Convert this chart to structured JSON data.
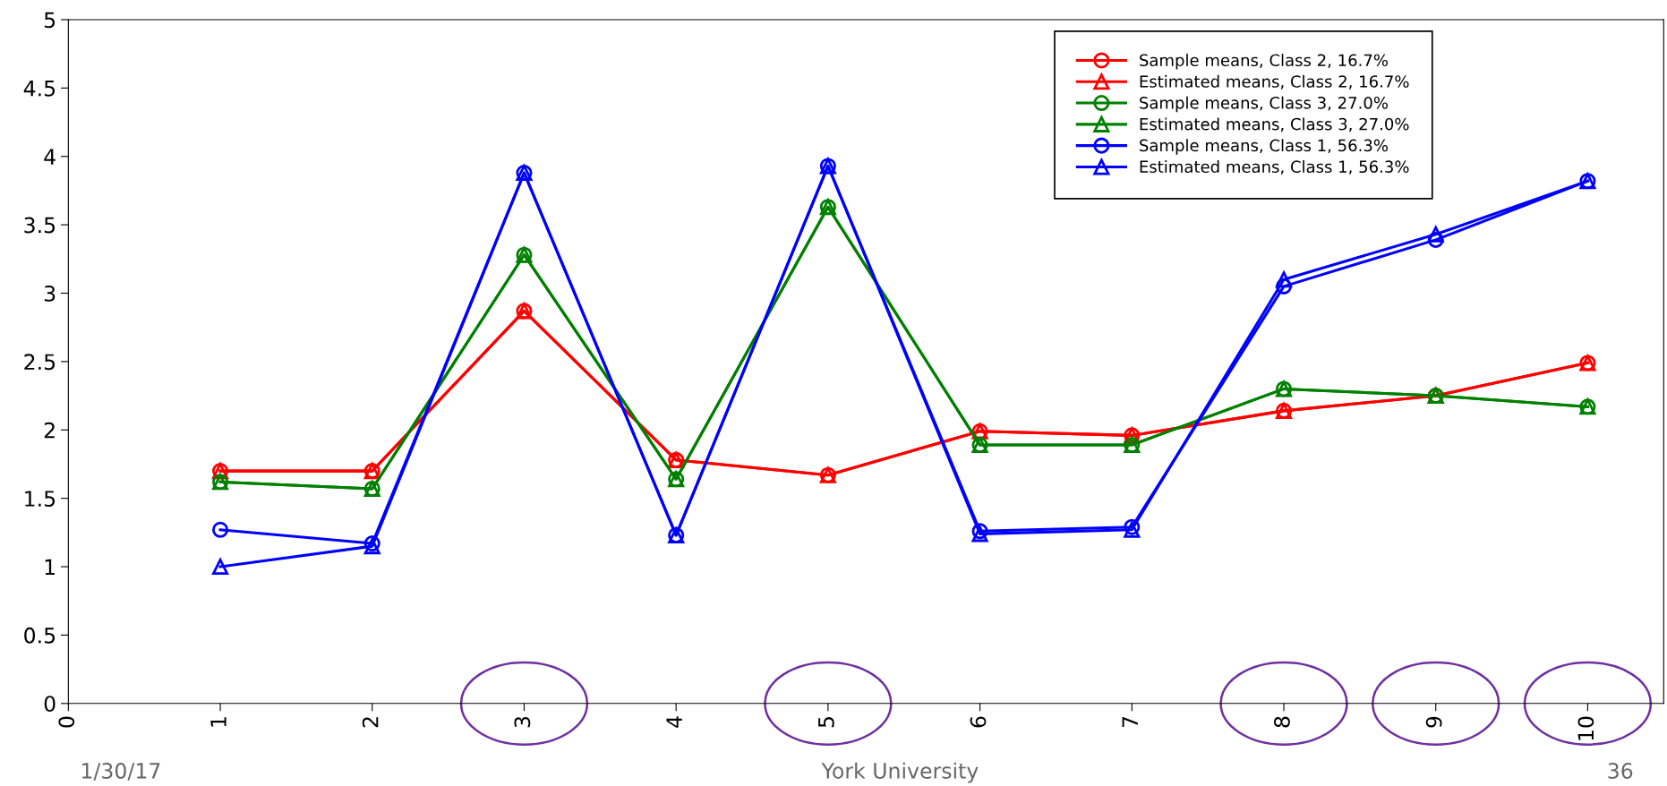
{
  "chart_data": {
    "type": "line",
    "x": [
      1,
      2,
      3,
      4,
      5,
      6,
      7,
      8,
      9,
      10
    ],
    "series": [
      {
        "name": "Sample means, Class 2, 16.7%",
        "color": "#ff0000",
        "marker": "circle",
        "values": [
          1.7,
          1.7,
          2.87,
          1.78,
          1.67,
          1.99,
          1.96,
          2.14,
          2.25,
          2.49
        ]
      },
      {
        "name": "Estimated means, Class 2, 16.7%",
        "color": "#ff0000",
        "marker": "triangle",
        "values": [
          1.7,
          1.7,
          2.87,
          1.78,
          1.67,
          1.99,
          1.96,
          2.14,
          2.25,
          2.49
        ]
      },
      {
        "name": "Sample means, Class 3, 27.0%",
        "color": "#008000",
        "marker": "circle",
        "values": [
          1.62,
          1.57,
          3.28,
          1.64,
          3.63,
          1.89,
          1.89,
          2.3,
          2.25,
          2.17
        ]
      },
      {
        "name": "Estimated means, Class 3, 27.0%",
        "color": "#008000",
        "marker": "triangle",
        "values": [
          1.62,
          1.57,
          3.28,
          1.64,
          3.63,
          1.89,
          1.89,
          2.3,
          2.25,
          2.17
        ]
      },
      {
        "name": "Sample means, Class 1, 56.3%",
        "color": "#0000ff",
        "marker": "circle",
        "values": [
          1.27,
          1.17,
          3.88,
          1.23,
          3.93,
          1.26,
          1.29,
          3.05,
          3.39,
          3.82
        ]
      },
      {
        "name": "Estimated means, Class 1, 56.3%",
        "color": "#0000ff",
        "marker": "triangle",
        "values": [
          1.0,
          1.15,
          3.88,
          1.23,
          3.93,
          1.24,
          1.27,
          3.1,
          3.43,
          3.82
        ]
      }
    ],
    "xlim": [
      0,
      10.5
    ],
    "xticks": [
      0,
      1,
      2,
      3,
      4,
      5,
      6,
      7,
      8,
      9,
      10
    ],
    "ylim": [
      0,
      5
    ],
    "yticks": [
      0,
      0.5,
      1,
      1.5,
      2,
      2.5,
      3,
      3.5,
      4,
      4.5,
      5
    ],
    "grid": false,
    "legend": "top right",
    "line_style": "solid",
    "annotations": [
      "1/30/17",
      "York University",
      "36"
    ]
  }
}
